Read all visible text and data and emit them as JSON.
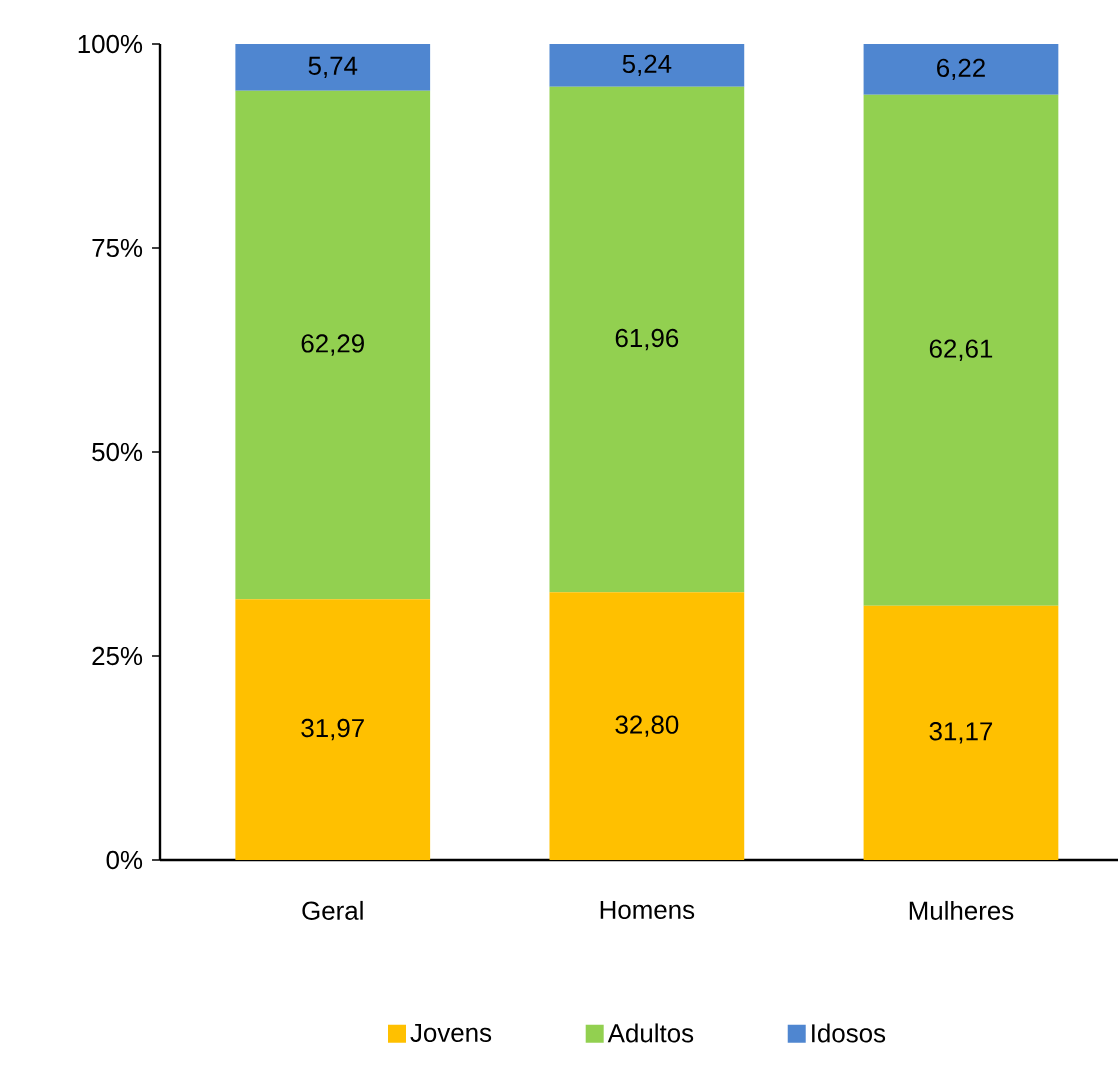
{
  "chart_data": {
    "type": "bar",
    "stacked": true,
    "categories": [
      "Geral",
      "Homens",
      "Mulheres"
    ],
    "series": [
      {
        "name": "Jovens",
        "color": "#ffc000",
        "values": [
          31.97,
          32.8,
          31.17
        ],
        "value_labels": [
          "31,97",
          "32,80",
          "31,17"
        ]
      },
      {
        "name": "Adultos",
        "color": "#92d050",
        "values": [
          62.29,
          61.96,
          62.61
        ],
        "value_labels": [
          "62,29",
          "61,96",
          "62,61"
        ]
      },
      {
        "name": "Idosos",
        "color": "#4f86d0",
        "values": [
          5.74,
          5.24,
          6.22
        ],
        "value_labels": [
          "5,74",
          "5,24",
          "6,22"
        ]
      }
    ],
    "ylim": [
      0,
      100
    ],
    "yticks": [
      {
        "value": 0,
        "label": "0%"
      },
      {
        "value": 25,
        "label": "25%"
      },
      {
        "value": 50,
        "label": "50%"
      },
      {
        "value": 75,
        "label": "75%"
      },
      {
        "value": 100,
        "label": "100%"
      }
    ],
    "grid": false,
    "legend": "bottom"
  }
}
